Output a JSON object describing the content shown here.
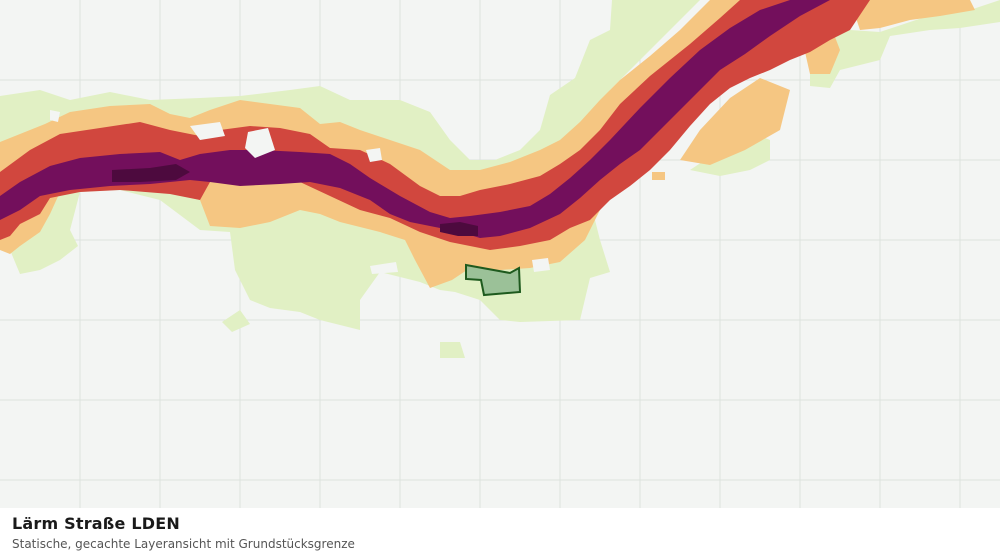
{
  "caption": {
    "title": "Lärm Straße LDEN",
    "subtitle": "Statische, gecachte Layeransicht mit Grundstücksgrenze"
  },
  "colors": {
    "background": "#f3f5f3",
    "grid": "#dde2de",
    "noise_class_1": "#e1f0c4",
    "noise_class_2": "#f5c682",
    "noise_class_3": "#d1473e",
    "noise_class_4": "#730f5c",
    "noise_class_5": "#4d0a3e",
    "parcel_fill": "#94bb94",
    "parcel_stroke": "#1e5a1e"
  }
}
